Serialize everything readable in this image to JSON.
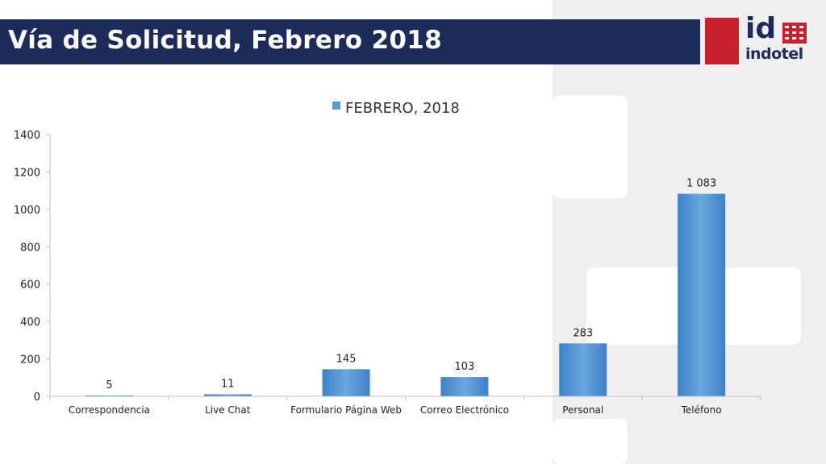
{
  "header": {
    "title": "Vía de Solicitud, Febrero 2018"
  },
  "logo": {
    "mark_text": "id",
    "word_text": "indotel",
    "brand_color": "#c8202e",
    "navy_color": "#1c2b5a"
  },
  "chart_data": {
    "type": "bar",
    "title": "",
    "xlabel": "",
    "ylabel": "",
    "categories": [
      "Correspondencia",
      "Live Chat",
      "Formulario Página Web",
      "Correo Electrónico",
      "Personal",
      "Teléfono"
    ],
    "series": [
      {
        "name": "FEBRERO, 2018",
        "values": [
          5,
          11,
          145,
          103,
          283,
          1083
        ],
        "data_labels": [
          "5",
          "11",
          "145",
          "103",
          "283",
          "1 083"
        ],
        "color": "#5b9bd5"
      }
    ],
    "ylim": [
      0,
      1400
    ],
    "yticks": [
      0,
      200,
      400,
      600,
      800,
      1000,
      1200,
      1400
    ],
    "legend_position": "top-center",
    "grid": false
  }
}
